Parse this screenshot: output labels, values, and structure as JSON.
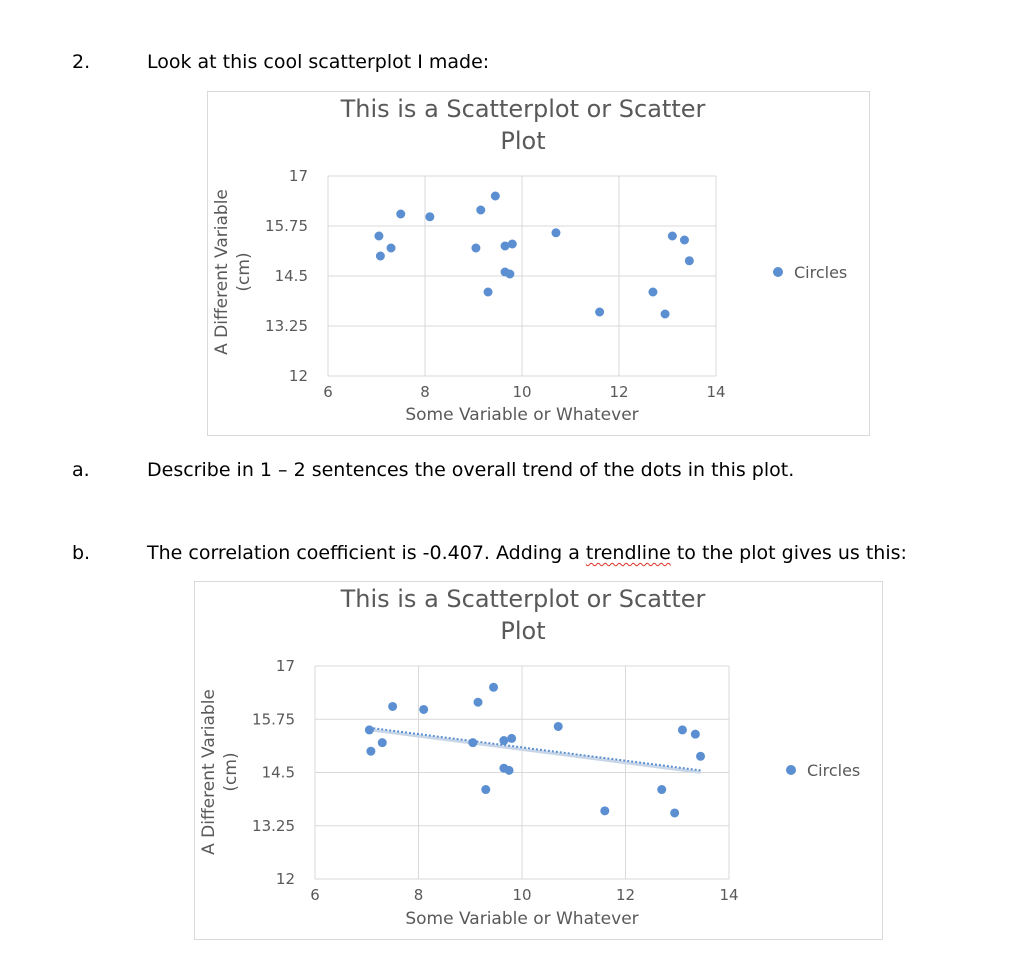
{
  "question": {
    "number": "2.",
    "text": "Look at this cool scatterplot I made:"
  },
  "part_a": {
    "label": "a.",
    "text": "Describe in 1 – 2 sentences the overall trend of the dots in this plot."
  },
  "part_b": {
    "label": "b.",
    "text_before": "The correlation coefficient is -0.407. Adding a ",
    "text_spell": "trendline",
    "text_after": " to the plot gives us this:"
  },
  "colors": {
    "marker": "#5b8fd1",
    "gridline": "#d9d9d9",
    "trendline": "#5b8fd1",
    "text": "#595959"
  },
  "chart_data": [
    {
      "type": "scatter",
      "title_line1": "This is a Scatterplot or Scatter",
      "title_line2": "Plot",
      "xlabel": "Some Variable or Whatever",
      "ylabel_line1": "A Different Variable",
      "ylabel_line2": "(cm)",
      "xlim": [
        6,
        14
      ],
      "ylim": [
        12,
        17
      ],
      "xticks": [
        6,
        8,
        10,
        12,
        14
      ],
      "yticks": [
        12,
        13.25,
        14.5,
        15.75,
        17
      ],
      "ytick_labels": [
        "12",
        "13.25",
        "14.5",
        "15.75",
        "17"
      ],
      "grid": true,
      "legend_position": "right",
      "series": [
        {
          "name": "Circles",
          "x": [
            7.05,
            7.08,
            7.3,
            7.5,
            8.1,
            9.05,
            9.15,
            9.3,
            9.45,
            9.65,
            9.65,
            9.75,
            9.8,
            10.7,
            11.6,
            12.7,
            12.95,
            13.1,
            13.35,
            13.45
          ],
          "y": [
            15.5,
            15.0,
            15.2,
            16.05,
            15.98,
            15.2,
            16.15,
            14.1,
            16.5,
            14.6,
            15.25,
            14.55,
            15.3,
            15.58,
            13.6,
            14.1,
            13.55,
            15.5,
            15.4,
            14.88
          ]
        }
      ],
      "trendline": false
    },
    {
      "type": "scatter",
      "title_line1": "This is a Scatterplot or Scatter",
      "title_line2": "Plot",
      "xlabel": "Some Variable or Whatever",
      "ylabel_line1": "A Different Variable",
      "ylabel_line2": "(cm)",
      "xlim": [
        6,
        14
      ],
      "ylim": [
        12,
        17
      ],
      "xticks": [
        6,
        8,
        10,
        12,
        14
      ],
      "yticks": [
        12,
        13.25,
        14.5,
        15.75,
        17
      ],
      "ytick_labels": [
        "12",
        "13.25",
        "14.5",
        "15.75",
        "17"
      ],
      "grid": true,
      "legend_position": "right",
      "series": [
        {
          "name": "Circles",
          "x": [
            7.05,
            7.08,
            7.3,
            7.5,
            8.1,
            9.05,
            9.15,
            9.3,
            9.45,
            9.65,
            9.65,
            9.75,
            9.8,
            10.7,
            11.6,
            12.7,
            12.95,
            13.1,
            13.35,
            13.45
          ],
          "y": [
            15.5,
            15.0,
            15.2,
            16.05,
            15.98,
            15.2,
            16.15,
            14.1,
            16.5,
            14.6,
            15.25,
            14.55,
            15.3,
            15.58,
            13.6,
            14.1,
            13.55,
            15.5,
            15.4,
            14.88
          ]
        }
      ],
      "trendline": true,
      "trendline_endpoints": {
        "x": [
          7.05,
          13.45
        ],
        "y": [
          15.55,
          14.55
        ]
      }
    }
  ]
}
